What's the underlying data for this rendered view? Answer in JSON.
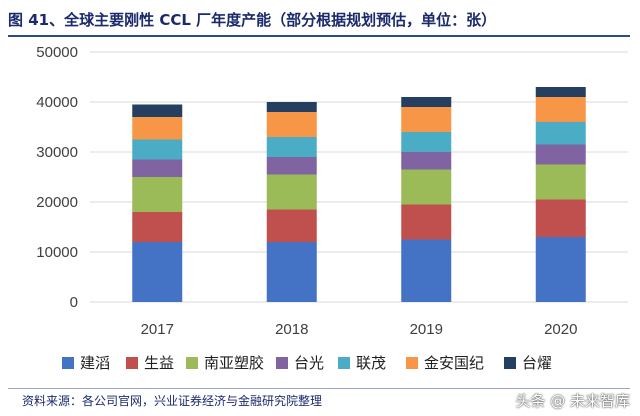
{
  "title": "图 41、全球主要刚性 CCL 厂年度产能（部分根据规划预估，单位：张）",
  "source": "资料来源：各公司官网，兴业证券经济与金融研究院整理",
  "watermark": "头条 @ 未来智库",
  "colors": [
    "#4472c4",
    "#c0504d",
    "#9bbb59",
    "#8064a2",
    "#4bacc6",
    "#f79646",
    "#243f60"
  ],
  "chart_data": {
    "type": "bar",
    "stacked": true,
    "title": "",
    "xlabel": "",
    "ylabel": "",
    "categories": [
      "2017",
      "2018",
      "2019",
      "2020"
    ],
    "ylim": [
      0,
      50000
    ],
    "yticks": [
      0,
      10000,
      20000,
      30000,
      40000,
      50000
    ],
    "grid": true,
    "legend": "bottom",
    "series": [
      {
        "name": "建滔",
        "values": [
          12000,
          12000,
          12500,
          13000
        ]
      },
      {
        "name": "生益",
        "values": [
          6000,
          6500,
          7000,
          7500
        ]
      },
      {
        "name": "南亚塑胶",
        "values": [
          7000,
          7000,
          7000,
          7000
        ]
      },
      {
        "name": "台光",
        "values": [
          3500,
          3500,
          3500,
          4000
        ]
      },
      {
        "name": "联茂",
        "values": [
          4000,
          4000,
          4000,
          4500
        ]
      },
      {
        "name": "金安国纪",
        "values": [
          4500,
          5000,
          5000,
          5000
        ]
      },
      {
        "name": "台燿",
        "values": [
          2500,
          2000,
          2000,
          2000
        ]
      }
    ]
  }
}
